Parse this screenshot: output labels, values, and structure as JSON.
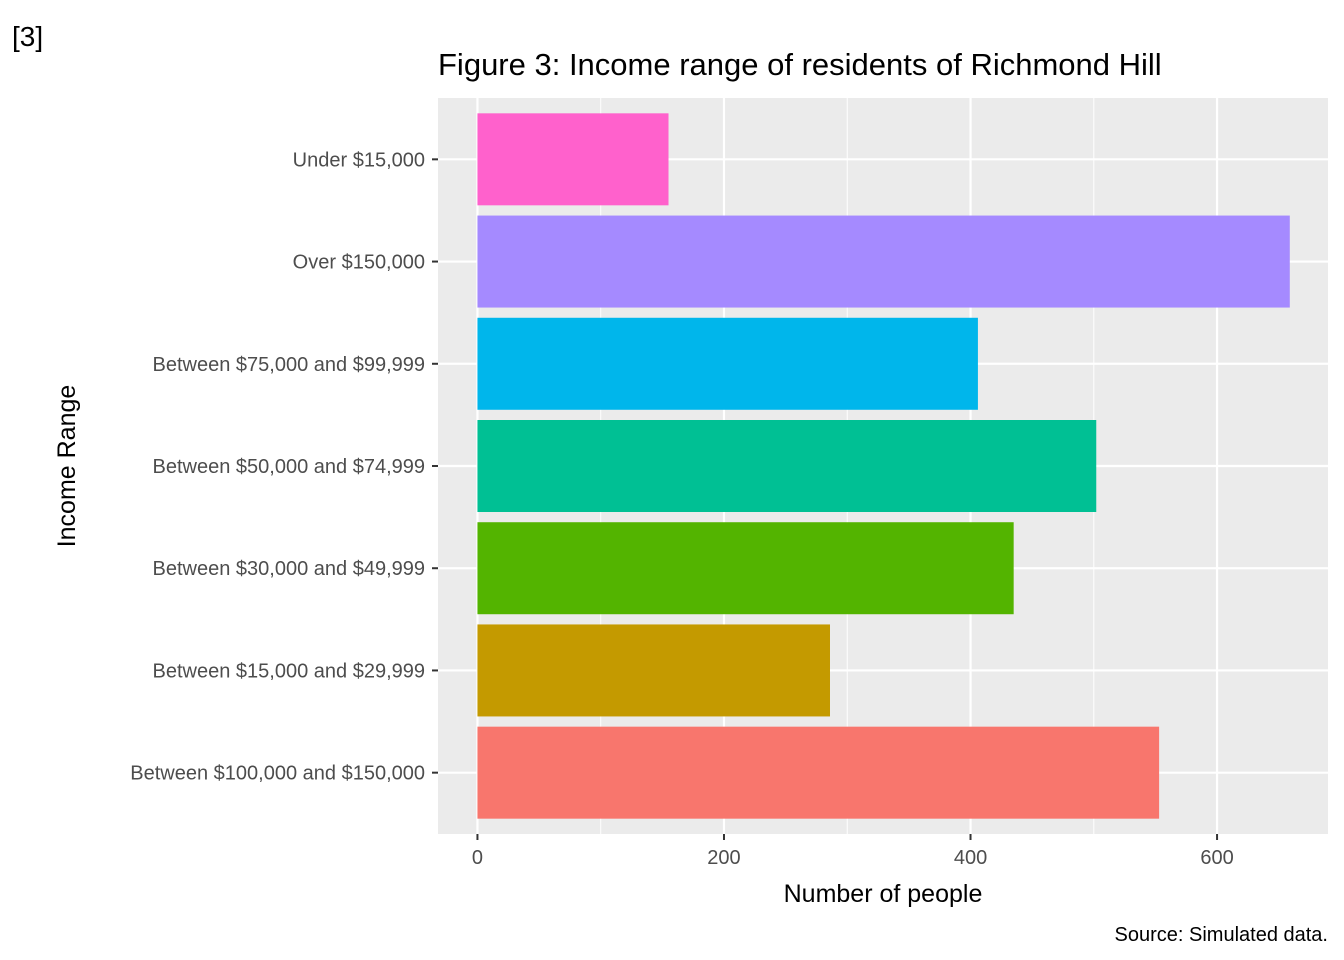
{
  "ref_label": "[3]",
  "chart_data": {
    "type": "bar",
    "orientation": "horizontal",
    "title": "Figure 3: Income range of residents of Richmond Hill",
    "xlabel": "Number of people",
    "ylabel": "Income Range",
    "caption": "Source: Simulated data.",
    "xlim": [
      -32,
      690
    ],
    "xticks": [
      0,
      200,
      400,
      600
    ],
    "grid": true,
    "legend": "none",
    "categories": [
      "Under $15,000",
      "Over $150,000",
      "Between $75,000 and $99,999",
      "Between $50,000 and $74,999",
      "Between $30,000 and $49,999",
      "Between $15,000 and $29,999",
      "Between $100,000 and $150,000"
    ],
    "values": [
      155,
      659,
      406,
      502,
      435,
      286,
      553
    ],
    "colors": [
      "#FF61CC",
      "#A58AFF",
      "#00B6EB",
      "#00C094",
      "#53B400",
      "#C49A00",
      "#F8766D"
    ]
  }
}
